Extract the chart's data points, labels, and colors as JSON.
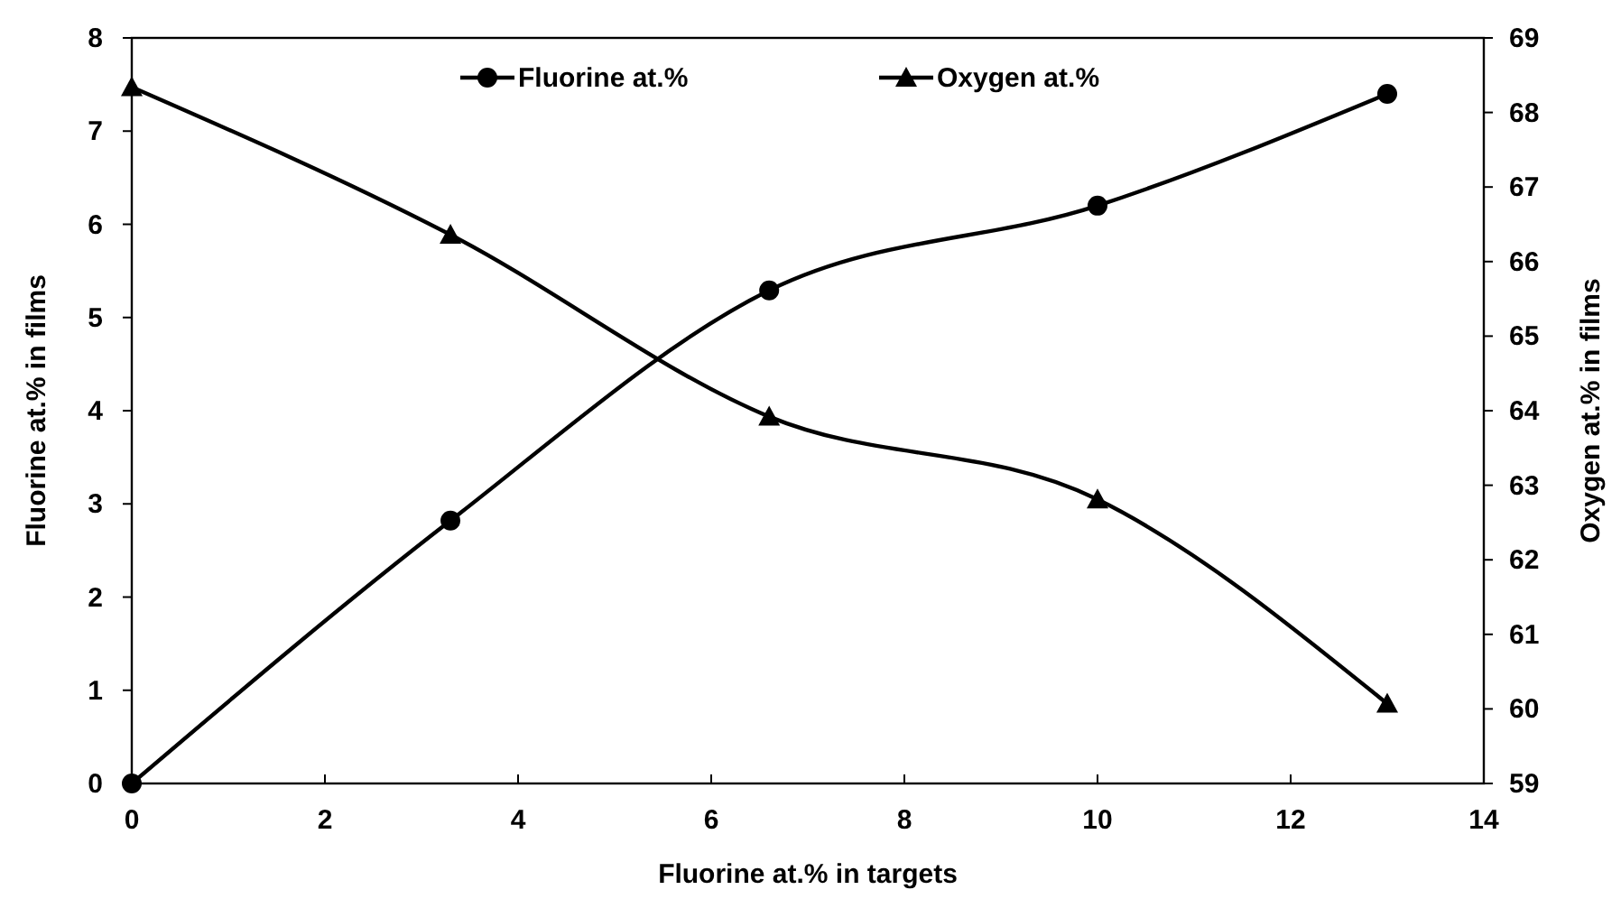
{
  "chart_data": {
    "type": "line",
    "xlabel": "Fluorine at.% in targets",
    "ylabel": "Fluorine at.% in films",
    "y2label": "Oxygen at.% in films",
    "x": [
      0,
      3.3,
      6.6,
      10,
      13
    ],
    "series": [
      {
        "name": "Fluorine at.%",
        "color": "#000000",
        "marker": "circle",
        "values": [
          0,
          2.82,
          5.29,
          6.2,
          7.4
        ]
      },
      {
        "name": "Oxygen at.%",
        "color": "#000000",
        "marker": "triangle",
        "axis": "y2",
        "values": [
          68.34,
          66.36,
          63.92,
          62.81,
          60.07
        ]
      }
    ],
    "xlim": [
      0,
      14
    ],
    "xticks": [
      0,
      2,
      4,
      6,
      8,
      10,
      12,
      14
    ],
    "ylim": [
      0,
      8
    ],
    "yticks": [
      0,
      1,
      2,
      3,
      4,
      5,
      6,
      7,
      8
    ],
    "y2lim": [
      59,
      69
    ],
    "y2ticks": [
      59,
      60,
      61,
      62,
      63,
      64,
      65,
      66,
      67,
      68,
      69
    ],
    "grid": false,
    "legend": "top",
    "line_style": "solid"
  }
}
